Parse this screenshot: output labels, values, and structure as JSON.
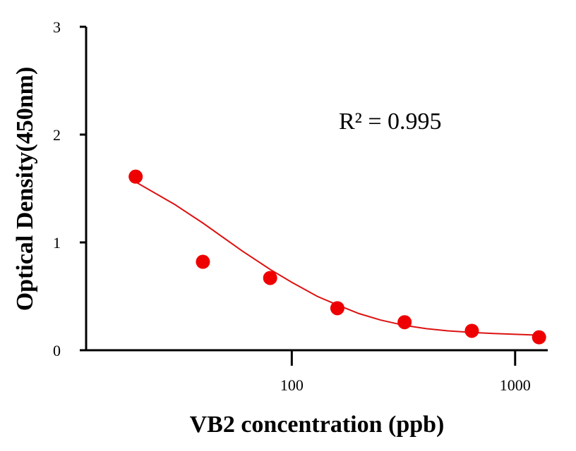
{
  "chart_data": {
    "type": "scatter",
    "title": "",
    "xlabel": "VB2 concentration (ppb)",
    "ylabel": "Optical Density(450nm)",
    "x_scale": "log",
    "xlim": [
      12,
      1400
    ],
    "ylim": [
      0,
      3
    ],
    "x_ticks": [
      100,
      1000
    ],
    "x_tick_labels": [
      "100",
      "1000"
    ],
    "y_ticks": [
      0,
      1,
      2,
      3
    ],
    "y_tick_labels": [
      "0",
      "1",
      "2",
      "3"
    ],
    "grid": false,
    "legend": "none",
    "annotation": "R² = 0.995",
    "series": [
      {
        "x": [
          20,
          40,
          80,
          160,
          320,
          640,
          1280
        ],
        "y": [
          1.61,
          0.82,
          0.67,
          0.39,
          0.26,
          0.18,
          0.12
        ],
        "color": "#ee0000",
        "marker": "circle"
      }
    ],
    "fit_curve": {
      "type": "exponential",
      "color": "#dd1111",
      "x": [
        20,
        30,
        40,
        60,
        80,
        100,
        130,
        160,
        200,
        250,
        320,
        400,
        500,
        640,
        800,
        1000,
        1280
      ],
      "y": [
        1.56,
        1.35,
        1.18,
        0.92,
        0.75,
        0.63,
        0.5,
        0.42,
        0.34,
        0.28,
        0.23,
        0.2,
        0.18,
        0.165,
        0.155,
        0.148,
        0.14
      ]
    }
  }
}
